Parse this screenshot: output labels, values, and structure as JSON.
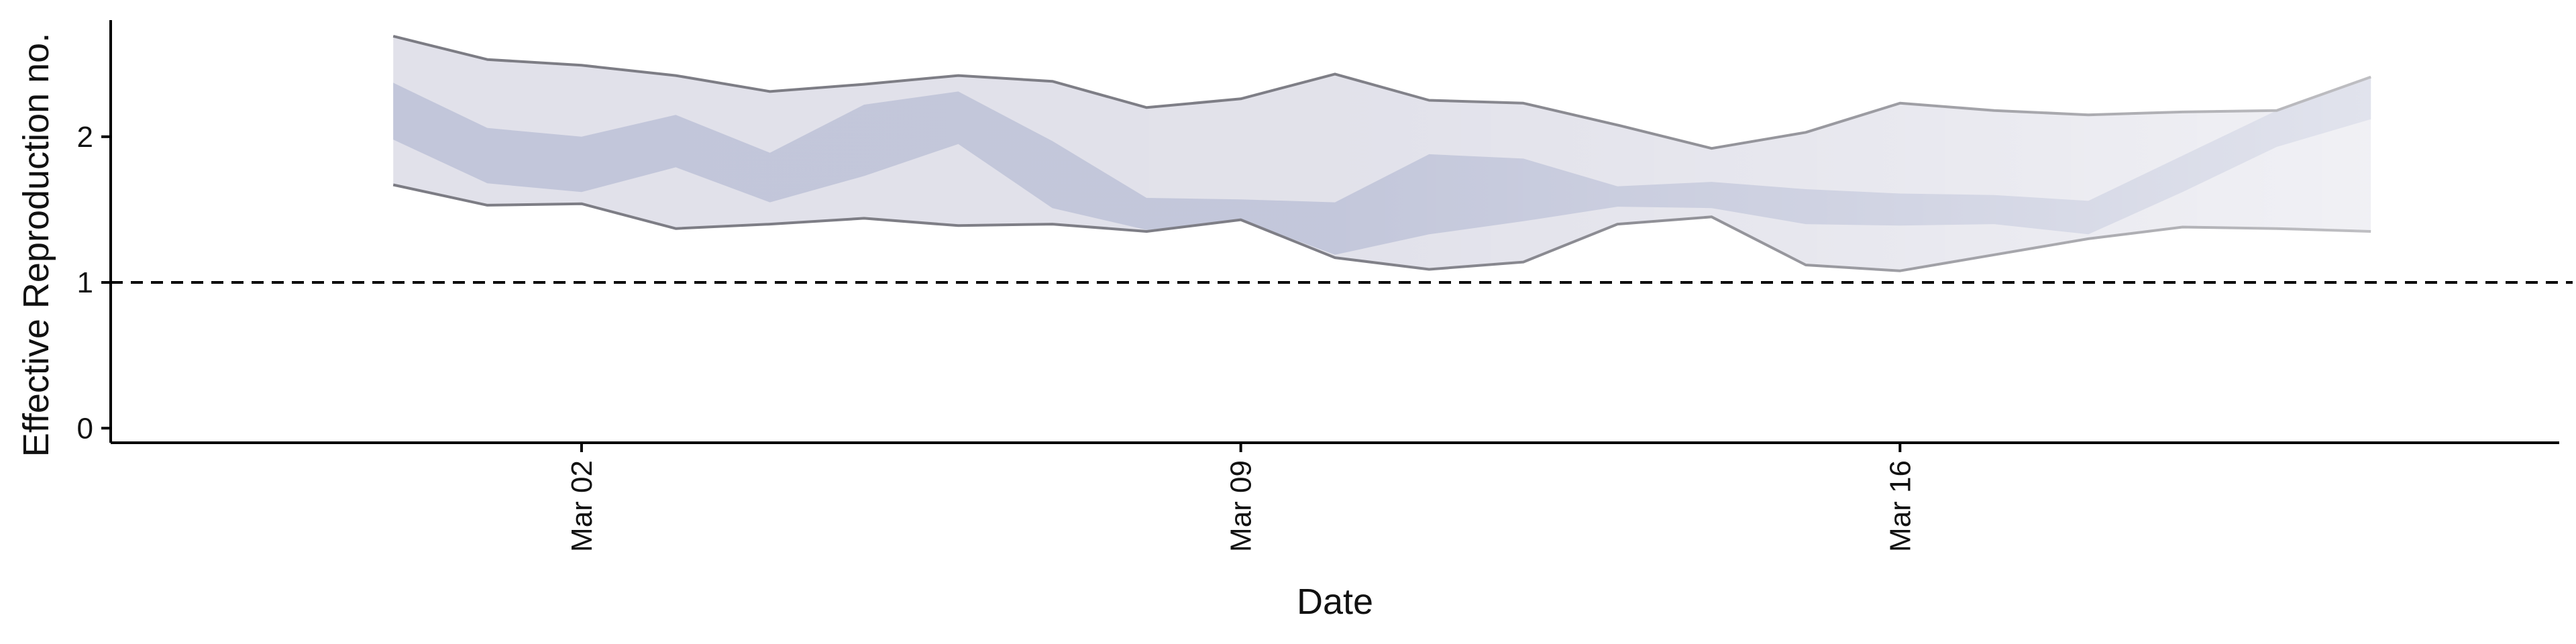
{
  "chart_data": {
    "type": "area",
    "xlabel": "Date",
    "ylabel": "Effective Reproduction no.",
    "x_axis": {
      "type": "date",
      "range": [
        "2020-02-26",
        "2020-03-23"
      ],
      "ticks": [
        {
          "date": "2020-03-02",
          "label": "Mar 02"
        },
        {
          "date": "2020-03-09",
          "label": "Mar 09"
        },
        {
          "date": "2020-03-16",
          "label": "Mar 16"
        }
      ]
    },
    "y_axis": {
      "range": [
        -0.1,
        2.8
      ],
      "ticks": [
        0,
        1,
        2
      ]
    },
    "reference_line": {
      "y": 1,
      "style": "dashed"
    },
    "series": [
      {
        "band": "outer",
        "x": [
          "2020-02-29",
          "2020-03-01",
          "2020-03-02",
          "2020-03-03",
          "2020-03-04",
          "2020-03-05",
          "2020-03-06",
          "2020-03-07",
          "2020-03-08",
          "2020-03-09",
          "2020-03-10",
          "2020-03-11",
          "2020-03-12",
          "2020-03-13",
          "2020-03-14",
          "2020-03-15",
          "2020-03-16",
          "2020-03-17",
          "2020-03-18",
          "2020-03-19",
          "2020-03-20",
          "2020-03-21"
        ],
        "lower": [
          1.67,
          1.53,
          1.54,
          1.37,
          1.4,
          1.44,
          1.39,
          1.4,
          1.35,
          1.43,
          1.17,
          1.09,
          1.14,
          1.4,
          1.45,
          1.12,
          1.08,
          1.19,
          1.3,
          1.38,
          1.37,
          1.35
        ],
        "upper": [
          2.69,
          2.53,
          2.49,
          2.42,
          2.31,
          2.36,
          2.42,
          2.38,
          2.2,
          2.26,
          2.43,
          2.25,
          2.23,
          2.08,
          1.92,
          2.03,
          2.23,
          2.18,
          2.15,
          2.17,
          2.18,
          2.41
        ]
      },
      {
        "band": "inner",
        "x": [
          "2020-02-29",
          "2020-03-01",
          "2020-03-02",
          "2020-03-03",
          "2020-03-04",
          "2020-03-05",
          "2020-03-06",
          "2020-03-07",
          "2020-03-08",
          "2020-03-09",
          "2020-03-10",
          "2020-03-11",
          "2020-03-12",
          "2020-03-13",
          "2020-03-14",
          "2020-03-15",
          "2020-03-16",
          "2020-03-17",
          "2020-03-18",
          "2020-03-19",
          "2020-03-20",
          "2020-03-21"
        ],
        "lower": [
          1.98,
          1.68,
          1.62,
          1.79,
          1.55,
          1.73,
          1.95,
          1.51,
          1.36,
          1.43,
          1.19,
          1.33,
          1.42,
          1.52,
          1.51,
          1.4,
          1.39,
          1.4,
          1.33,
          1.62,
          1.93,
          2.12
        ],
        "upper": [
          2.37,
          2.06,
          2.0,
          2.15,
          1.89,
          2.22,
          2.31,
          1.97,
          1.58,
          1.57,
          1.55,
          1.88,
          1.85,
          1.66,
          1.69,
          1.64,
          1.61,
          1.6,
          1.56,
          1.87,
          2.18,
          2.41
        ]
      }
    ],
    "colors": {
      "outer_band": "#e1e1ea",
      "inner_band": "#c2c6da",
      "band_edge": "#7c7c84",
      "axis": "#000000",
      "reference_line": "#000000",
      "background": "#ffffff"
    },
    "grid": false,
    "legend": "none"
  }
}
